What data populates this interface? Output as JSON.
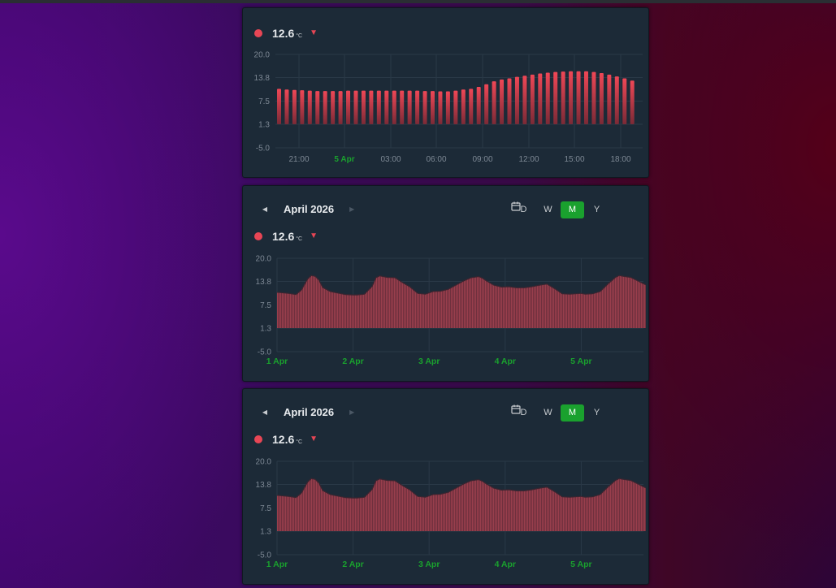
{
  "theme": {
    "card_bg": "#1c2a37",
    "accent_red": "#e84655",
    "accent_green": "#1aa12e",
    "grid": "#2a3947",
    "axis_text": "#7d8894"
  },
  "widgets": [
    {
      "id": "day",
      "legend": {
        "value": "12.6",
        "unit": "°C",
        "trend_icon": "triangle-down-icon"
      },
      "chart_data": {
        "type": "bar",
        "xlabel": "",
        "ylabel": "",
        "y_ticks": [
          "20.0",
          "13.8",
          "7.5",
          "1.3",
          "-5.0"
        ],
        "ylim": [
          -5.0,
          20.0
        ],
        "x_ticks": [
          "21:00",
          "5 Apr",
          "03:00",
          "06:00",
          "09:00",
          "12:00",
          "15:00",
          "18:00"
        ],
        "highlight_tick": "5 Apr",
        "baseline": 1.3,
        "values": [
          10.8,
          10.6,
          10.5,
          10.4,
          10.3,
          10.2,
          10.2,
          10.2,
          10.2,
          10.3,
          10.3,
          10.3,
          10.3,
          10.3,
          10.3,
          10.3,
          10.3,
          10.3,
          10.3,
          10.2,
          10.2,
          10.1,
          10.1,
          10.3,
          10.6,
          10.8,
          11.3,
          12.0,
          12.8,
          13.3,
          13.6,
          14.0,
          14.3,
          14.6,
          14.9,
          15.1,
          15.3,
          15.4,
          15.5,
          15.5,
          15.5,
          15.3,
          15.0,
          14.6,
          14.1,
          13.6,
          13.0
        ]
      }
    },
    {
      "id": "month1",
      "nav": {
        "period": "April 2026",
        "prev_icon": "triangle-left-icon",
        "next_icon": "triangle-right-icon"
      },
      "ranges": [
        "D",
        "W",
        "M",
        "Y"
      ],
      "active_range": "M",
      "calendar_icon": "calendar-icon",
      "legend": {
        "value": "12.6",
        "unit": "°C",
        "trend_icon": "triangle-down-icon"
      },
      "chart_data": {
        "type": "area",
        "xlabel": "",
        "ylabel": "",
        "y_ticks": [
          "20.0",
          "13.8",
          "7.5",
          "1.3",
          "-5.0"
        ],
        "ylim": [
          -5.0,
          20.0
        ],
        "x_ticks": [
          "1 Apr",
          "2 Apr",
          "3 Apr",
          "4 Apr",
          "5 Apr"
        ],
        "baseline": 1.3,
        "x": [
          0,
          0.05,
          0.15,
          0.25,
          0.32,
          0.4,
          0.45,
          0.5,
          0.55,
          0.6,
          0.7,
          0.8,
          0.9,
          1.0,
          1.05,
          1.15,
          1.25,
          1.3,
          1.35,
          1.45,
          1.55,
          1.65,
          1.75,
          1.85,
          1.95,
          2.05,
          2.15,
          2.25,
          2.35,
          2.45,
          2.55,
          2.65,
          2.7,
          2.75,
          2.85,
          2.95,
          3.05,
          3.15,
          3.25,
          3.35,
          3.45,
          3.55,
          3.65,
          3.75,
          3.85,
          4.0,
          4.05,
          4.15,
          4.25,
          4.35,
          4.45,
          4.5,
          4.55,
          4.65,
          4.75,
          4.8,
          4.85
        ],
        "values": [
          10.9,
          10.8,
          10.6,
          10.3,
          11.5,
          14.4,
          15.4,
          15.2,
          14.2,
          12.2,
          11.1,
          10.7,
          10.3,
          10.2,
          10.2,
          10.4,
          12.5,
          14.8,
          15.3,
          14.9,
          14.8,
          13.5,
          12.3,
          10.6,
          10.4,
          11.1,
          11.2,
          11.7,
          12.8,
          13.9,
          14.8,
          15.1,
          14.7,
          14.0,
          12.8,
          12.3,
          12.4,
          12.1,
          12.1,
          12.4,
          12.8,
          13.1,
          11.9,
          10.5,
          10.4,
          10.6,
          10.4,
          10.5,
          11.1,
          13.1,
          14.9,
          15.4,
          15.2,
          14.9,
          13.9,
          13.4,
          12.9
        ]
      }
    },
    {
      "id": "month2",
      "nav": {
        "period": "April 2026",
        "prev_icon": "triangle-left-icon",
        "next_icon": "triangle-right-icon"
      },
      "ranges": [
        "D",
        "W",
        "M",
        "Y"
      ],
      "active_range": "M",
      "calendar_icon": "calendar-icon",
      "legend": {
        "value": "12.6",
        "unit": "°C",
        "trend_icon": "triangle-down-icon"
      },
      "chart_data": {
        "type": "area",
        "xlabel": "",
        "ylabel": "",
        "y_ticks": [
          "20.0",
          "13.8",
          "7.5",
          "1.3",
          "-5.0"
        ],
        "ylim": [
          -5.0,
          20.0
        ],
        "x_ticks": [
          "1 Apr",
          "2 Apr",
          "3 Apr",
          "4 Apr",
          "5 Apr"
        ],
        "baseline": 1.3,
        "x": [
          0,
          0.05,
          0.15,
          0.25,
          0.32,
          0.4,
          0.45,
          0.5,
          0.55,
          0.6,
          0.7,
          0.8,
          0.9,
          1.0,
          1.05,
          1.15,
          1.25,
          1.3,
          1.35,
          1.45,
          1.55,
          1.65,
          1.75,
          1.85,
          1.95,
          2.05,
          2.15,
          2.25,
          2.35,
          2.45,
          2.55,
          2.65,
          2.7,
          2.75,
          2.85,
          2.95,
          3.05,
          3.15,
          3.25,
          3.35,
          3.45,
          3.55,
          3.65,
          3.75,
          3.85,
          4.0,
          4.05,
          4.15,
          4.25,
          4.35,
          4.45,
          4.5,
          4.55,
          4.65,
          4.75,
          4.8,
          4.85
        ],
        "values": [
          10.9,
          10.8,
          10.6,
          10.3,
          11.5,
          14.4,
          15.4,
          15.2,
          14.2,
          12.2,
          11.1,
          10.7,
          10.3,
          10.2,
          10.2,
          10.4,
          12.5,
          14.8,
          15.3,
          14.9,
          14.8,
          13.5,
          12.3,
          10.6,
          10.4,
          11.1,
          11.2,
          11.7,
          12.8,
          13.9,
          14.8,
          15.1,
          14.7,
          14.0,
          12.8,
          12.3,
          12.4,
          12.1,
          12.1,
          12.4,
          12.8,
          13.1,
          11.9,
          10.5,
          10.4,
          10.6,
          10.4,
          10.5,
          11.1,
          13.1,
          14.9,
          15.4,
          15.2,
          14.9,
          13.9,
          13.4,
          12.9
        ]
      }
    }
  ]
}
